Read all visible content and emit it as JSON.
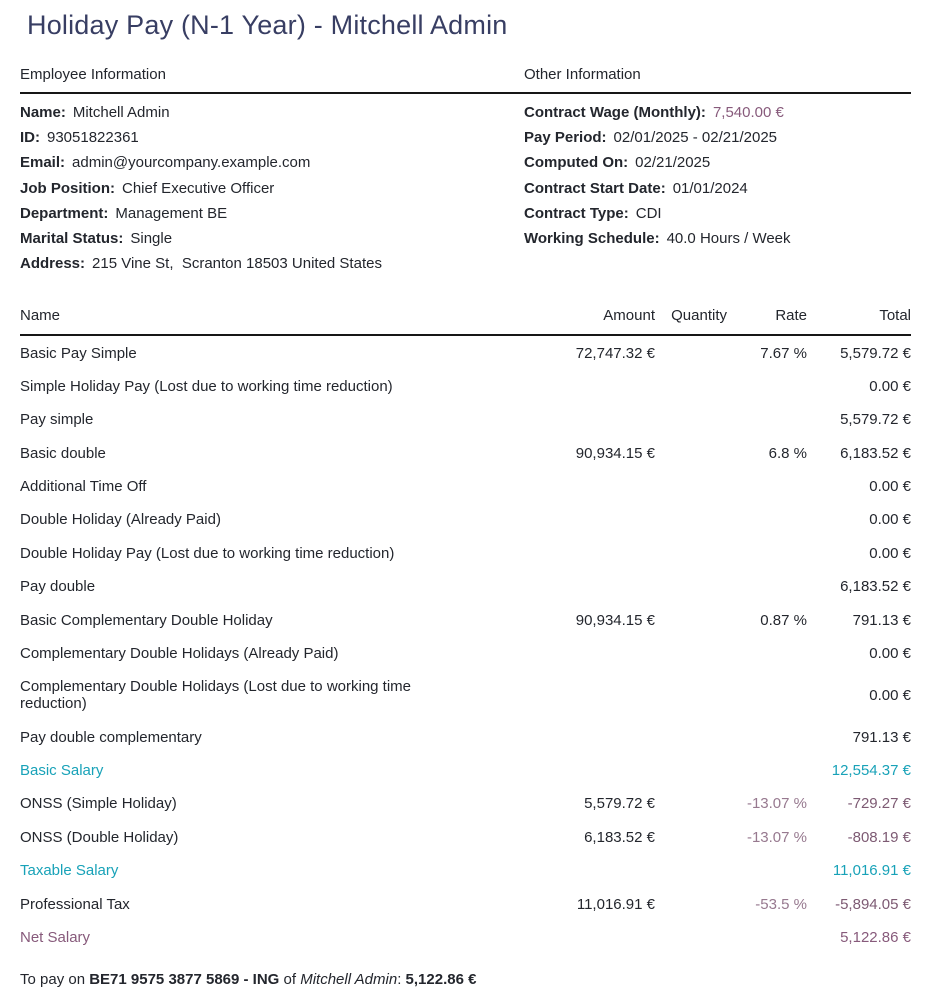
{
  "title": "Holiday Pay (N-1 Year) - Mitchell Admin",
  "employee_info": {
    "heading": "Employee Information",
    "fields": [
      {
        "label": "Name:",
        "value": "Mitchell Admin"
      },
      {
        "label": "ID:",
        "value": "93051822361"
      },
      {
        "label": "Email:",
        "value": "admin@yourcompany.example.com"
      },
      {
        "label": "Job Position:",
        "value": "Chief Executive Officer"
      },
      {
        "label": "Department:",
        "value": "Management BE"
      },
      {
        "label": "Marital Status:",
        "value": "Single"
      },
      {
        "label": "Address:",
        "value": "215 Vine St,  Scranton 18503 United States"
      }
    ]
  },
  "other_info": {
    "heading": "Other Information",
    "fields": [
      {
        "label": "Contract Wage (Monthly):",
        "value": "7,540.00 €"
      },
      {
        "label": "Pay Period:",
        "value": "02/01/2025 - 02/21/2025"
      },
      {
        "label": "Computed On:",
        "value": "02/21/2025"
      },
      {
        "label": "Contract Start Date:",
        "value": "01/01/2024"
      },
      {
        "label": "Contract Type:",
        "value": "CDI"
      },
      {
        "label": "Working Schedule:",
        "value": "40.0 Hours / Week"
      }
    ]
  },
  "salary_table": {
    "columns": [
      "Name",
      "Amount",
      "Quantity",
      "Rate",
      "Total"
    ],
    "rows": [
      {
        "name": "Basic Pay Simple",
        "amount": "72,747.32 €",
        "quantity": "",
        "rate": "7.67 %",
        "total": "5,579.72 €",
        "style": "normal"
      },
      {
        "name": "Simple Holiday Pay (Lost due to working time reduction)",
        "amount": "",
        "quantity": "",
        "rate": "",
        "total": "0.00 €",
        "style": "normal"
      },
      {
        "name": "Pay simple",
        "amount": "",
        "quantity": "",
        "rate": "",
        "total": "5,579.72 €",
        "style": "normal"
      },
      {
        "name": "Basic double",
        "amount": "90,934.15 €",
        "quantity": "",
        "rate": "6.8 %",
        "total": "6,183.52 €",
        "style": "normal"
      },
      {
        "name": "Additional Time Off",
        "amount": "",
        "quantity": "",
        "rate": "",
        "total": "0.00 €",
        "style": "normal"
      },
      {
        "name": "Double Holiday (Already Paid)",
        "amount": "",
        "quantity": "",
        "rate": "",
        "total": "0.00 €",
        "style": "normal"
      },
      {
        "name": "Double Holiday Pay (Lost due to working time reduction)",
        "amount": "",
        "quantity": "",
        "rate": "",
        "total": "0.00 €",
        "style": "normal"
      },
      {
        "name": "Pay double",
        "amount": "",
        "quantity": "",
        "rate": "",
        "total": "6,183.52 €",
        "style": "normal"
      },
      {
        "name": "Basic Complementary Double Holiday",
        "amount": "90,934.15 €",
        "quantity": "",
        "rate": "0.87 %",
        "total": "791.13 €",
        "style": "normal"
      },
      {
        "name": "Complementary Double Holidays (Already Paid)",
        "amount": "",
        "quantity": "",
        "rate": "",
        "total": "0.00 €",
        "style": "normal"
      },
      {
        "name": "Complementary Double Holidays (Lost due to working time reduction)",
        "amount": "",
        "quantity": "",
        "rate": "",
        "total": "0.00 €",
        "style": "normal"
      },
      {
        "name": "Pay double complementary",
        "amount": "",
        "quantity": "",
        "rate": "",
        "total": "791.13 €",
        "style": "normal"
      },
      {
        "name": "Basic Salary",
        "amount": "",
        "quantity": "",
        "rate": "",
        "total": "12,554.37 €",
        "style": "info"
      },
      {
        "name": "ONSS (Simple Holiday)",
        "amount": "5,579.72 €",
        "quantity": "",
        "rate": "-13.07 %",
        "total": "-729.27 €",
        "style": "normal"
      },
      {
        "name": "ONSS (Double Holiday)",
        "amount": "6,183.52 €",
        "quantity": "",
        "rate": "-13.07 %",
        "total": "-808.19 €",
        "style": "normal"
      },
      {
        "name": "Taxable Salary",
        "amount": "",
        "quantity": "",
        "rate": "",
        "total": "11,016.91 €",
        "style": "info"
      },
      {
        "name": "Professional Tax",
        "amount": "11,016.91 €",
        "quantity": "",
        "rate": "-53.5 %",
        "total": "-5,894.05 €",
        "style": "normal"
      },
      {
        "name": "Net Salary",
        "amount": "",
        "quantity": "",
        "rate": "",
        "total": "5,122.86 €",
        "style": "net"
      }
    ]
  },
  "footer": {
    "prefix": "To pay on ",
    "account": "BE71 9575 3877 5869 - ING",
    "mid": " of ",
    "payee": "Mitchell Admin",
    "separator": ": ",
    "amount": "5,122.86 €"
  },
  "colors": {
    "title": "#383e63",
    "accent_purple": "#875A7B",
    "accent_teal": "#18a2b8",
    "negative_rate": "#97798f",
    "negative_total": "#7d5a73",
    "text": "#23262d",
    "rule": "#161616"
  }
}
